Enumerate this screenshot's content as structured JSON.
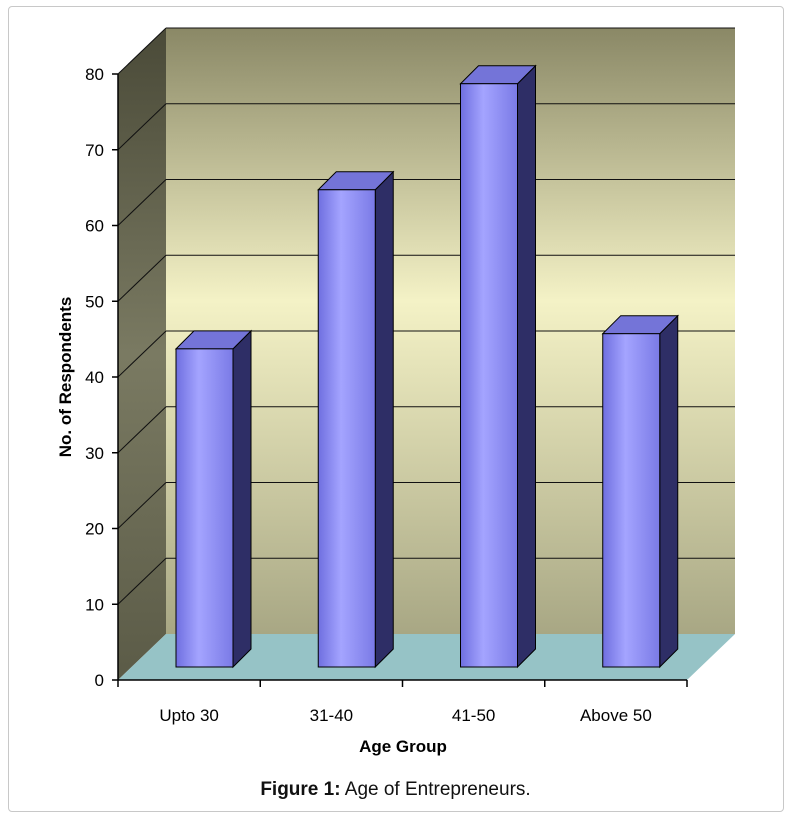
{
  "caption": {
    "label": "Figure 1:",
    "text": "Age of Entrepreneurs."
  },
  "colors": {
    "bar_front": "#8c8cf2",
    "bar_top": "#7474d8",
    "bar_side": "#2e2e66",
    "floor": "#96c3c6",
    "wall_top": "#8a8866",
    "wall_mid": "#f4f2c6",
    "side_wall": "#5b5b47"
  },
  "chart_data": {
    "type": "bar",
    "categories": [
      "Upto 30",
      "31-40",
      "41-50",
      "Above 50"
    ],
    "values": [
      42,
      63,
      77,
      44
    ],
    "title": "",
    "xlabel": "Age Group",
    "ylabel": "No. of Respondents",
    "ylim": [
      0,
      80
    ],
    "yticks": [
      "0",
      "10",
      "20",
      "30",
      "40",
      "50",
      "60",
      "70",
      "80"
    ],
    "grid": true,
    "style": "3d"
  }
}
